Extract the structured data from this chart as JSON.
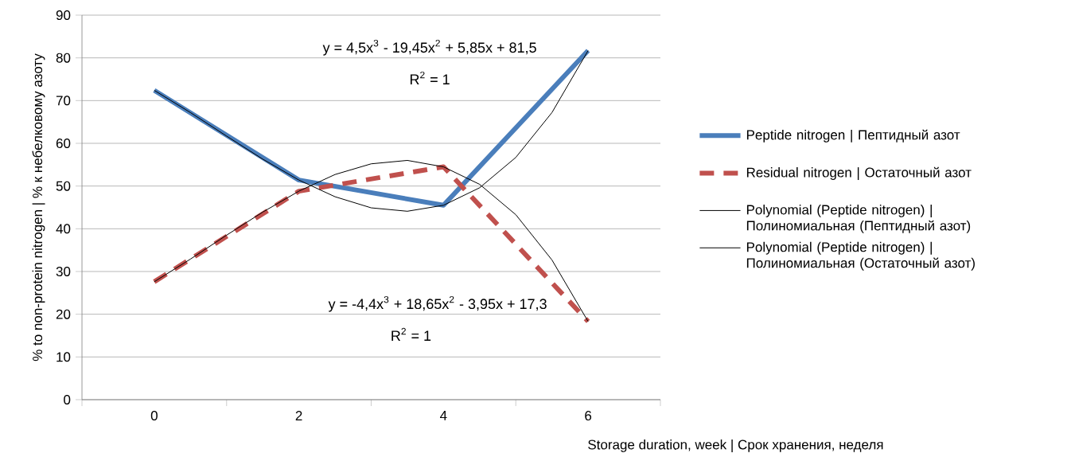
{
  "chart_data": {
    "type": "line",
    "xlabel": "Storage duration, week | Срок хранения, неделя",
    "ylabel": "% to non-protein nitrogen | % к небелковому азоту",
    "x": [
      0,
      2,
      4,
      6
    ],
    "xlim": [
      -1,
      7
    ],
    "xticks": [
      {
        "value": -1,
        "label": null
      },
      0,
      {
        "value": 1,
        "label": null
      },
      2,
      {
        "value": 3,
        "label": null
      },
      4,
      {
        "value": 5,
        "label": null
      },
      6,
      {
        "value": 7,
        "label": null
      }
    ],
    "ylim": [
      0,
      90
    ],
    "yticks": [
      0,
      10,
      20,
      30,
      40,
      50,
      60,
      70,
      80,
      90
    ],
    "grid": "y",
    "legend": "right",
    "marker": "none",
    "series": [
      {
        "name": "Peptide nitrogen | Пептидный азот",
        "color": "#4a7ebb",
        "line_style": "solid",
        "values": [
          72.4,
          51.4,
          45.5,
          81.7
        ]
      },
      {
        "name": "Residual nitrogen | Остаточный азот",
        "color": "#c0504d",
        "line_style": "dashed",
        "values": [
          27.6,
          48.8,
          54.5,
          18.3
        ]
      },
      {
        "name": "Polynomial (Peptide nitrogen) | Полиномиальная (Пептидный азот)",
        "color": "#000000",
        "line_style": "solid",
        "type": "line",
        "x": [
          0,
          0.5,
          1,
          1.5,
          2,
          2.5,
          3,
          3.5,
          4,
          4.5,
          5,
          5.5,
          6
        ],
        "values": [
          72.4,
          67.2,
          61.7,
          56.3,
          51.4,
          47.5,
          44.9,
          44.1,
          45.5,
          49.6,
          56.7,
          67.2,
          81.7
        ]
      },
      {
        "name": "Polynomial (Peptide nitrogen) | Полиномиальная (Остаточный азот)",
        "color": "#000000",
        "line_style": "solid",
        "type": "line",
        "x": [
          0,
          0.5,
          1,
          1.5,
          2,
          2.5,
          3,
          3.5,
          4,
          4.5,
          5,
          5.5,
          6
        ],
        "values": [
          27.6,
          32.9,
          38.5,
          43.9,
          48.8,
          52.7,
          55.2,
          56,
          54.5,
          50.4,
          43.3,
          32.7,
          18.3
        ]
      }
    ],
    "annotations": [
      "y = 4,5x$^{3}$ - 19,45x$^{2}$ + 5,85x + 81,5",
      "R$^{2}$ = 1",
      "y = -4,4x$^{3}$ + 18,65x$^{2}$ - 3,95x + 17,3",
      "R$^{2}$ = 1"
    ]
  }
}
